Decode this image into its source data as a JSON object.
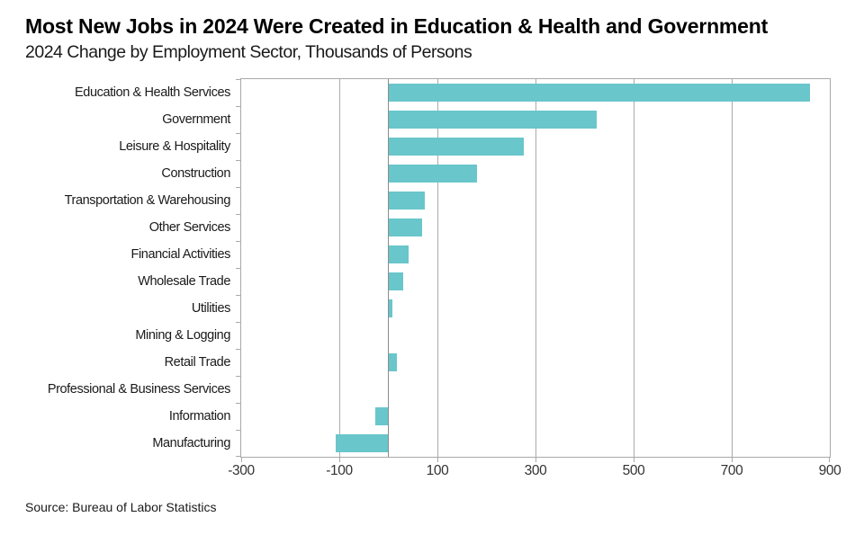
{
  "colors": {
    "bar": "#69C6CB",
    "grid": "#ABABAB",
    "zero_line": "#8C8C8C",
    "plot_border": "#A9A9A9",
    "title_text": "#000000",
    "body_text": "#1A1A1A",
    "tick_text": "#333333"
  },
  "chart_data": {
    "type": "bar",
    "orientation": "horizontal",
    "title": "Most New Jobs in 2024 Were Created in Education & Health and Government",
    "subtitle": "2024 Change by Employment Sector, Thousands of Persons",
    "source": "Source: Bureau of Labor Statistics",
    "xlabel": "",
    "ylabel": "",
    "unit": "Thousands of Persons",
    "categories": [
      "Education & Health Services",
      "Government",
      "Leisure & Hospitality",
      "Construction",
      "Transportation & Warehousing",
      "Other Services",
      "Financial Activities",
      "Wholesale Trade",
      "Utilities",
      "Mining & Logging",
      "Retail Trade",
      "Professional & Business Services",
      "Information",
      "Manufacturing"
    ],
    "values": [
      860,
      425,
      277,
      180,
      75,
      68,
      42,
      30,
      8,
      0,
      18,
      0,
      -26,
      -107
    ],
    "xlim": [
      -300,
      900
    ],
    "xticks": [
      -300,
      -100,
      100,
      300,
      500,
      700,
      900
    ],
    "grid": "vertical",
    "zero_axis_line": true,
    "legend": "none"
  }
}
